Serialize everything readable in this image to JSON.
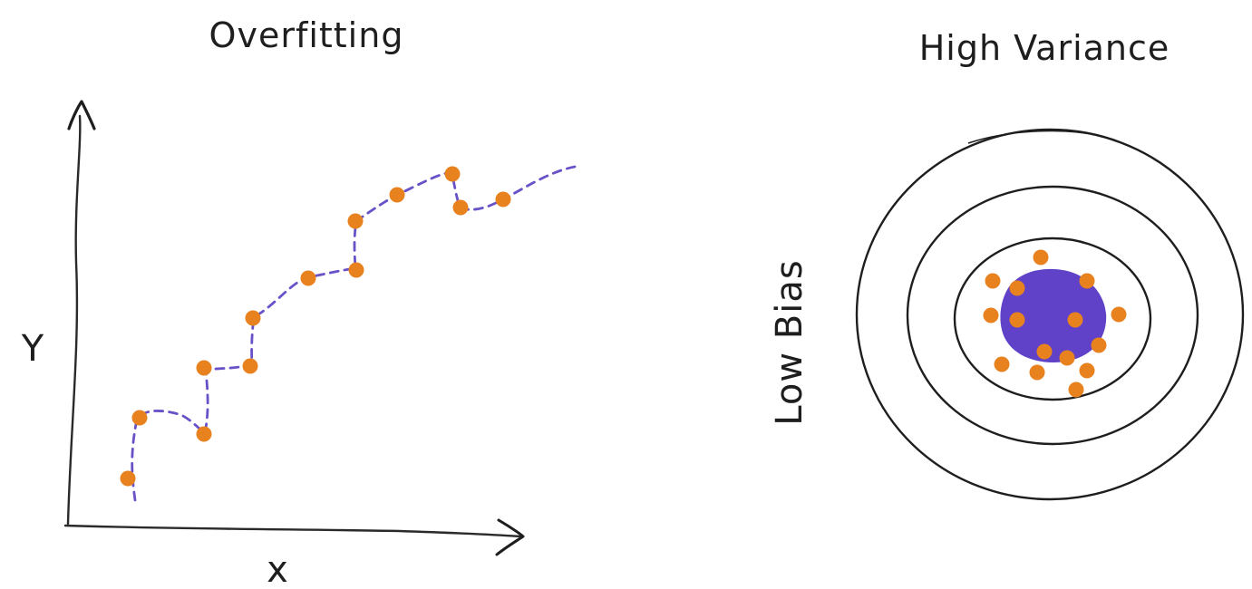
{
  "left_panel": {
    "title": "Overfitting",
    "x_axis_label": "x",
    "y_axis_label": "Y",
    "colors": {
      "point": "#e8821e",
      "curve": "#6951c8",
      "axis": "#2a2a2a"
    }
  },
  "right_panel": {
    "title": "High Variance",
    "side_label": "Low Bias",
    "colors": {
      "ring": "#1e1e1e",
      "blob": "#6042c8",
      "point": "#e8821e"
    }
  }
}
